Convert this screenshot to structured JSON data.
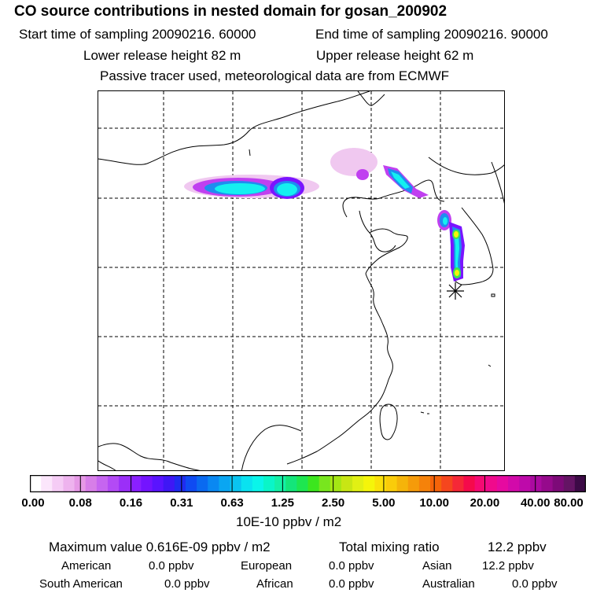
{
  "header": {
    "title": "CO  source contributions in nested domain for gosan_200902",
    "start_label": "Start time of sampling 20090216. 60000",
    "end_label": "End time of sampling 20090216. 90000",
    "lower_label": "Lower release height   82 m",
    "upper_label": "Upper release height   62 m",
    "note": "Passive tracer used, meteorological data are from ECMWF"
  },
  "colorbar": {
    "ticks": [
      "0.00",
      "0.08",
      "0.16",
      "0.31",
      "0.63",
      "1.25",
      "2.50",
      "5.00",
      "10.00",
      "20.00",
      "40.00",
      "80.00"
    ],
    "unit": "10E-10 ppbv / m2",
    "colors": [
      "#ffffff",
      "#fbe6fb",
      "#f5ccf5",
      "#eeb3ee",
      "#e699e6",
      "#d77ee8",
      "#c665f0",
      "#b34af5",
      "#9b2ff8",
      "#8a20ff",
      "#7414ff",
      "#5a14ff",
      "#3f17f5",
      "#1f2cf0",
      "#0f4bf2",
      "#0a6af0",
      "#0a88f2",
      "#0aa6f2",
      "#0ac4f0",
      "#0ae2f0",
      "#0af5ea",
      "#0af5c8",
      "#14f0a6",
      "#14e57a",
      "#1ee650",
      "#3ce61e",
      "#78e61e",
      "#a5e614",
      "#c8e614",
      "#e1f014",
      "#f5f50a",
      "#fae10a",
      "#facc0a",
      "#f5b40a",
      "#f59b0a",
      "#f5820a",
      "#f5640a",
      "#f5461e",
      "#f52837",
      "#f50a4b",
      "#f50a73",
      "#f00a8c",
      "#e60aa0",
      "#d20aaa",
      "#be0aaa",
      "#aa0aa0",
      "#960a8c",
      "#7d0a78",
      "#641464",
      "#3c0a46"
    ]
  },
  "summary": {
    "max_value": "Maximum value  0.616E-09 ppbv / m2",
    "total_label": "Total mixing ratio",
    "total_value": "12.2 ppbv",
    "regions": [
      {
        "name": "American",
        "value": "0.0 ppbv"
      },
      {
        "name": "European",
        "value": "0.0 ppbv"
      },
      {
        "name": "Asian",
        "value": "12.2 ppbv"
      },
      {
        "name": "South American",
        "value": "0.0 ppbv"
      },
      {
        "name": "African",
        "value": "0.0 ppbv"
      },
      {
        "name": "Australian",
        "value": "0.0 ppbv"
      }
    ]
  },
  "map": {
    "receptor": "Gosan",
    "plume_colors": {
      "light": "#f0c8f0",
      "magenta": "#c040f0",
      "purple": "#7a14ff",
      "blue": "#1f8cf0",
      "cyan": "#14f0f0",
      "green": "#3ce650",
      "yellow": "#f5f50a"
    }
  }
}
